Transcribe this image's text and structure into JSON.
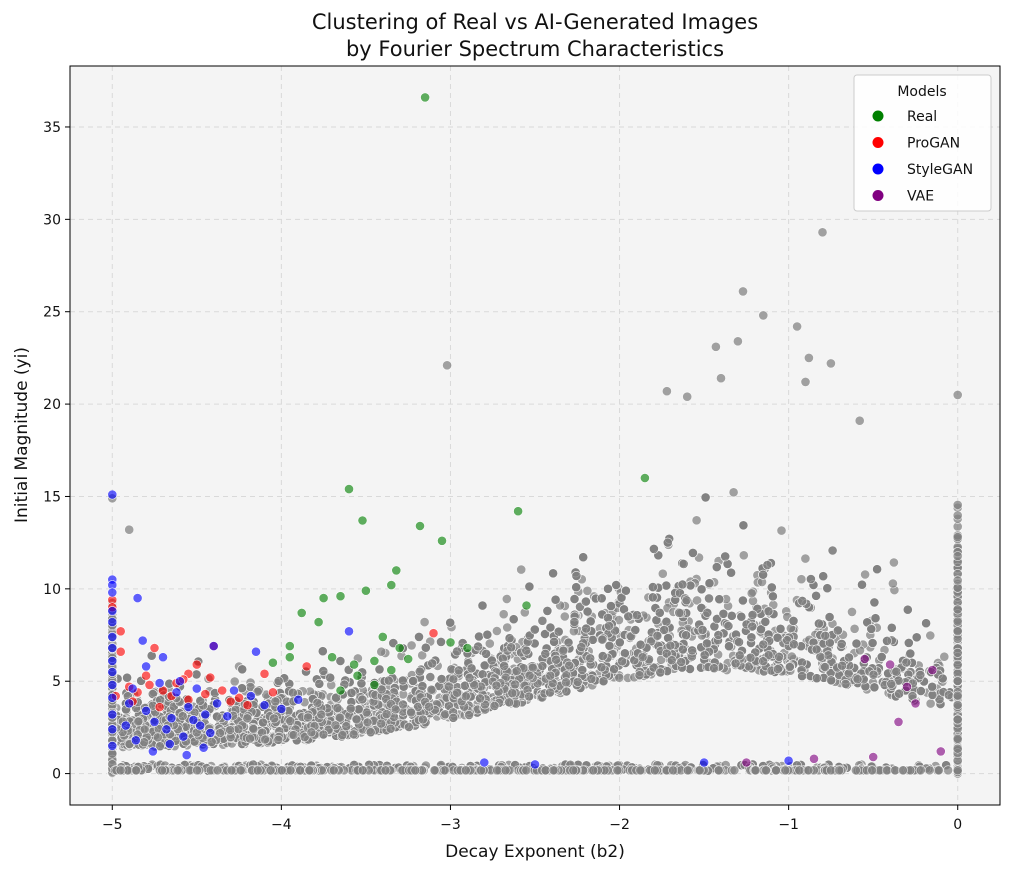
{
  "chart_data": {
    "type": "scatter",
    "title_lines": [
      "Clustering of Real vs AI-Generated Images",
      "by Fourier Spectrum Characteristics"
    ],
    "xlabel": "Decay Exponent (b2)",
    "ylabel": "Initial Magnitude (yi)",
    "xlim": [
      -5.25,
      0.25
    ],
    "ylim": [
      -1.7,
      38.3
    ],
    "xticks": [
      -5,
      -4,
      -3,
      -2,
      -1,
      0
    ],
    "xtick_labels": [
      "−5",
      "−4",
      "−3",
      "−2",
      "−1",
      "0"
    ],
    "yticks": [
      0,
      5,
      10,
      15,
      20,
      25,
      30,
      35
    ],
    "ytick_labels": [
      "0",
      "5",
      "10",
      "15",
      "20",
      "25",
      "30",
      "35"
    ],
    "grid": true,
    "legend": {
      "title": "Models",
      "placement": "top-right",
      "entries": [
        {
          "label": "Real",
          "color": "#008000"
        },
        {
          "label": "ProGAN",
          "color": "#ff0000"
        },
        {
          "label": "StyleGAN",
          "color": "#0000ff"
        },
        {
          "label": "VAE",
          "color": "#800080"
        }
      ]
    },
    "background_points_color": "#808080",
    "series": [
      {
        "name": "Real",
        "color": "#008000",
        "points": [
          [
            -3.15,
            36.6
          ],
          [
            -3.6,
            15.4
          ],
          [
            -3.52,
            13.7
          ],
          [
            -3.18,
            13.4
          ],
          [
            -3.05,
            12.6
          ],
          [
            -2.6,
            14.2
          ],
          [
            -1.85,
            16.0
          ],
          [
            -3.32,
            11.0
          ],
          [
            -3.35,
            10.2
          ],
          [
            -3.5,
            9.9
          ],
          [
            -3.75,
            9.5
          ],
          [
            -3.65,
            9.6
          ],
          [
            -3.88,
            8.7
          ],
          [
            -3.78,
            8.2
          ],
          [
            -2.55,
            9.1
          ],
          [
            -3.95,
            6.9
          ],
          [
            -3.95,
            6.3
          ],
          [
            -4.05,
            6.0
          ],
          [
            -3.7,
            6.3
          ],
          [
            -3.57,
            5.9
          ],
          [
            -3.45,
            6.1
          ],
          [
            -3.4,
            7.4
          ],
          [
            -3.3,
            6.8
          ],
          [
            -3.25,
            6.2
          ],
          [
            -3.0,
            7.1
          ],
          [
            -2.9,
            6.8
          ],
          [
            -3.45,
            4.8
          ],
          [
            -3.55,
            5.3
          ],
          [
            -3.65,
            4.5
          ],
          [
            -3.35,
            5.6
          ]
        ]
      },
      {
        "name": "ProGAN",
        "color": "#ff0000",
        "points": [
          [
            -5.0,
            9.4
          ],
          [
            -5.0,
            9.0
          ],
          [
            -4.95,
            7.7
          ],
          [
            -4.95,
            6.6
          ],
          [
            -4.4,
            6.9
          ],
          [
            -4.75,
            6.8
          ],
          [
            -4.5,
            5.9
          ],
          [
            -4.55,
            5.4
          ],
          [
            -4.62,
            4.9
          ],
          [
            -4.7,
            4.5
          ],
          [
            -4.8,
            5.3
          ],
          [
            -4.85,
            4.4
          ],
          [
            -4.9,
            4.7
          ],
          [
            -4.65,
            4.2
          ],
          [
            -4.55,
            4.0
          ],
          [
            -4.45,
            4.3
          ],
          [
            -4.35,
            4.5
          ],
          [
            -4.25,
            4.1
          ],
          [
            -4.1,
            5.4
          ],
          [
            -3.85,
            5.8
          ],
          [
            -4.05,
            4.4
          ],
          [
            -4.2,
            3.7
          ],
          [
            -4.72,
            3.6
          ],
          [
            -4.88,
            3.9
          ],
          [
            -4.58,
            5.1
          ],
          [
            -4.78,
            4.8
          ],
          [
            -4.42,
            5.2
          ],
          [
            -4.98,
            4.2
          ],
          [
            -3.1,
            7.6
          ],
          [
            -4.3,
            3.9
          ]
        ]
      },
      {
        "name": "StyleGAN",
        "color": "#0000ff",
        "points": [
          [
            -5.0,
            15.1
          ],
          [
            -5.0,
            10.5
          ],
          [
            -5.0,
            10.2
          ],
          [
            -5.0,
            9.8
          ],
          [
            -5.0,
            8.8
          ],
          [
            -5.0,
            8.2
          ],
          [
            -5.0,
            7.4
          ],
          [
            -5.0,
            6.8
          ],
          [
            -5.0,
            6.1
          ],
          [
            -5.0,
            5.5
          ],
          [
            -5.0,
            4.8
          ],
          [
            -5.0,
            4.1
          ],
          [
            -5.0,
            3.2
          ],
          [
            -5.0,
            2.4
          ],
          [
            -5.0,
            1.5
          ],
          [
            -4.85,
            9.5
          ],
          [
            -4.82,
            7.2
          ],
          [
            -4.4,
            6.9
          ],
          [
            -4.7,
            6.3
          ],
          [
            -4.6,
            5.0
          ],
          [
            -4.5,
            4.6
          ],
          [
            -4.55,
            3.6
          ],
          [
            -4.45,
            3.2
          ],
          [
            -4.65,
            3.0
          ],
          [
            -4.75,
            2.8
          ],
          [
            -4.8,
            3.4
          ],
          [
            -4.9,
            3.8
          ],
          [
            -4.68,
            2.4
          ],
          [
            -4.58,
            2.0
          ],
          [
            -4.48,
            2.6
          ],
          [
            -4.38,
            3.8
          ],
          [
            -4.28,
            4.5
          ],
          [
            -4.18,
            4.2
          ],
          [
            -4.1,
            3.7
          ],
          [
            -4.0,
            3.5
          ],
          [
            -3.9,
            4.0
          ],
          [
            -3.6,
            7.7
          ],
          [
            -4.15,
            6.6
          ],
          [
            -4.8,
            5.8
          ],
          [
            -4.62,
            4.4
          ],
          [
            -4.72,
            4.9
          ],
          [
            -4.52,
            2.9
          ],
          [
            -4.42,
            2.2
          ],
          [
            -4.32,
            3.1
          ],
          [
            -4.92,
            2.6
          ],
          [
            -4.86,
            1.8
          ],
          [
            -4.76,
            1.2
          ],
          [
            -4.66,
            1.6
          ],
          [
            -4.56,
            1.0
          ],
          [
            -4.46,
            1.4
          ],
          [
            -2.8,
            0.6
          ],
          [
            -1.0,
            0.7
          ],
          [
            -2.5,
            0.5
          ],
          [
            -1.5,
            0.6
          ],
          [
            -4.88,
            4.6
          ]
        ]
      },
      {
        "name": "VAE",
        "color": "#800080",
        "points": [
          [
            -0.4,
            5.9
          ],
          [
            -0.3,
            4.7
          ],
          [
            -0.15,
            5.6
          ],
          [
            -0.55,
            6.2
          ],
          [
            -0.25,
            3.8
          ],
          [
            -0.1,
            1.2
          ],
          [
            -0.5,
            0.9
          ],
          [
            -0.85,
            0.8
          ],
          [
            -1.25,
            0.6
          ],
          [
            -0.35,
            2.8
          ]
        ]
      }
    ]
  }
}
